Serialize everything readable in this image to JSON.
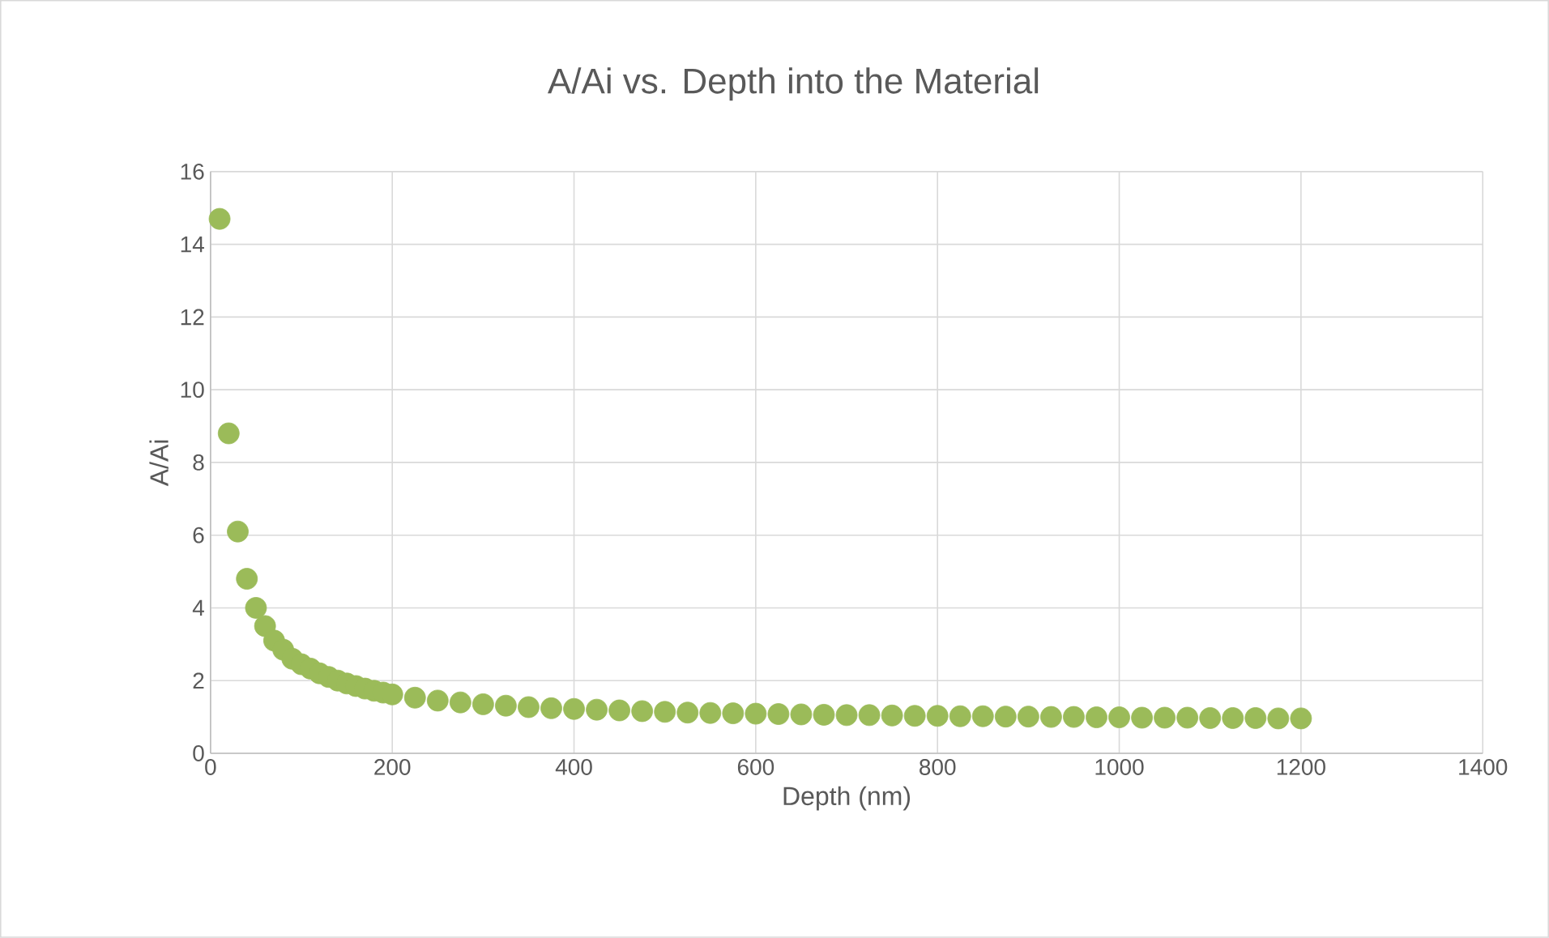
{
  "chart_data": {
    "type": "scatter",
    "title": "A/Ai vs. Depth into the Material",
    "xlabel": "Depth (nm)",
    "ylabel": "A/Ai",
    "series": [
      {
        "color": "#9bbb59",
        "x": [
          10,
          20,
          30,
          40,
          50,
          60,
          70,
          80,
          90,
          100,
          110,
          120,
          130,
          140,
          150,
          160,
          170,
          180,
          190,
          200,
          225,
          250,
          275,
          300,
          325,
          350,
          375,
          400,
          425,
          450,
          475,
          500,
          525,
          550,
          575,
          600,
          625,
          650,
          675,
          700,
          725,
          750,
          775,
          800,
          825,
          850,
          875,
          900,
          925,
          950,
          975,
          1000,
          1025,
          1050,
          1075,
          1100,
          1125,
          1150,
          1175,
          1200
        ],
        "values": [
          14.7,
          8.8,
          6.1,
          4.8,
          4.0,
          3.5,
          3.1,
          2.85,
          2.6,
          2.45,
          2.33,
          2.2,
          2.1,
          2.0,
          1.92,
          1.85,
          1.78,
          1.72,
          1.67,
          1.62,
          1.53,
          1.45,
          1.4,
          1.35,
          1.31,
          1.27,
          1.24,
          1.22,
          1.2,
          1.18,
          1.16,
          1.14,
          1.12,
          1.11,
          1.1,
          1.09,
          1.08,
          1.07,
          1.06,
          1.05,
          1.05,
          1.04,
          1.03,
          1.03,
          1.02,
          1.02,
          1.01,
          1.01,
          1.0,
          1.0,
          0.99,
          0.99,
          0.98,
          0.98,
          0.98,
          0.97,
          0.97,
          0.97,
          0.96,
          0.96
        ]
      }
    ],
    "xlim": [
      0,
      1400
    ],
    "ylim": [
      0,
      16
    ],
    "xticks": [
      0,
      200,
      400,
      600,
      800,
      1000,
      1200,
      1400
    ],
    "yticks": [
      0,
      2,
      4,
      6,
      8,
      10,
      12,
      14,
      16
    ],
    "grid": true
  }
}
